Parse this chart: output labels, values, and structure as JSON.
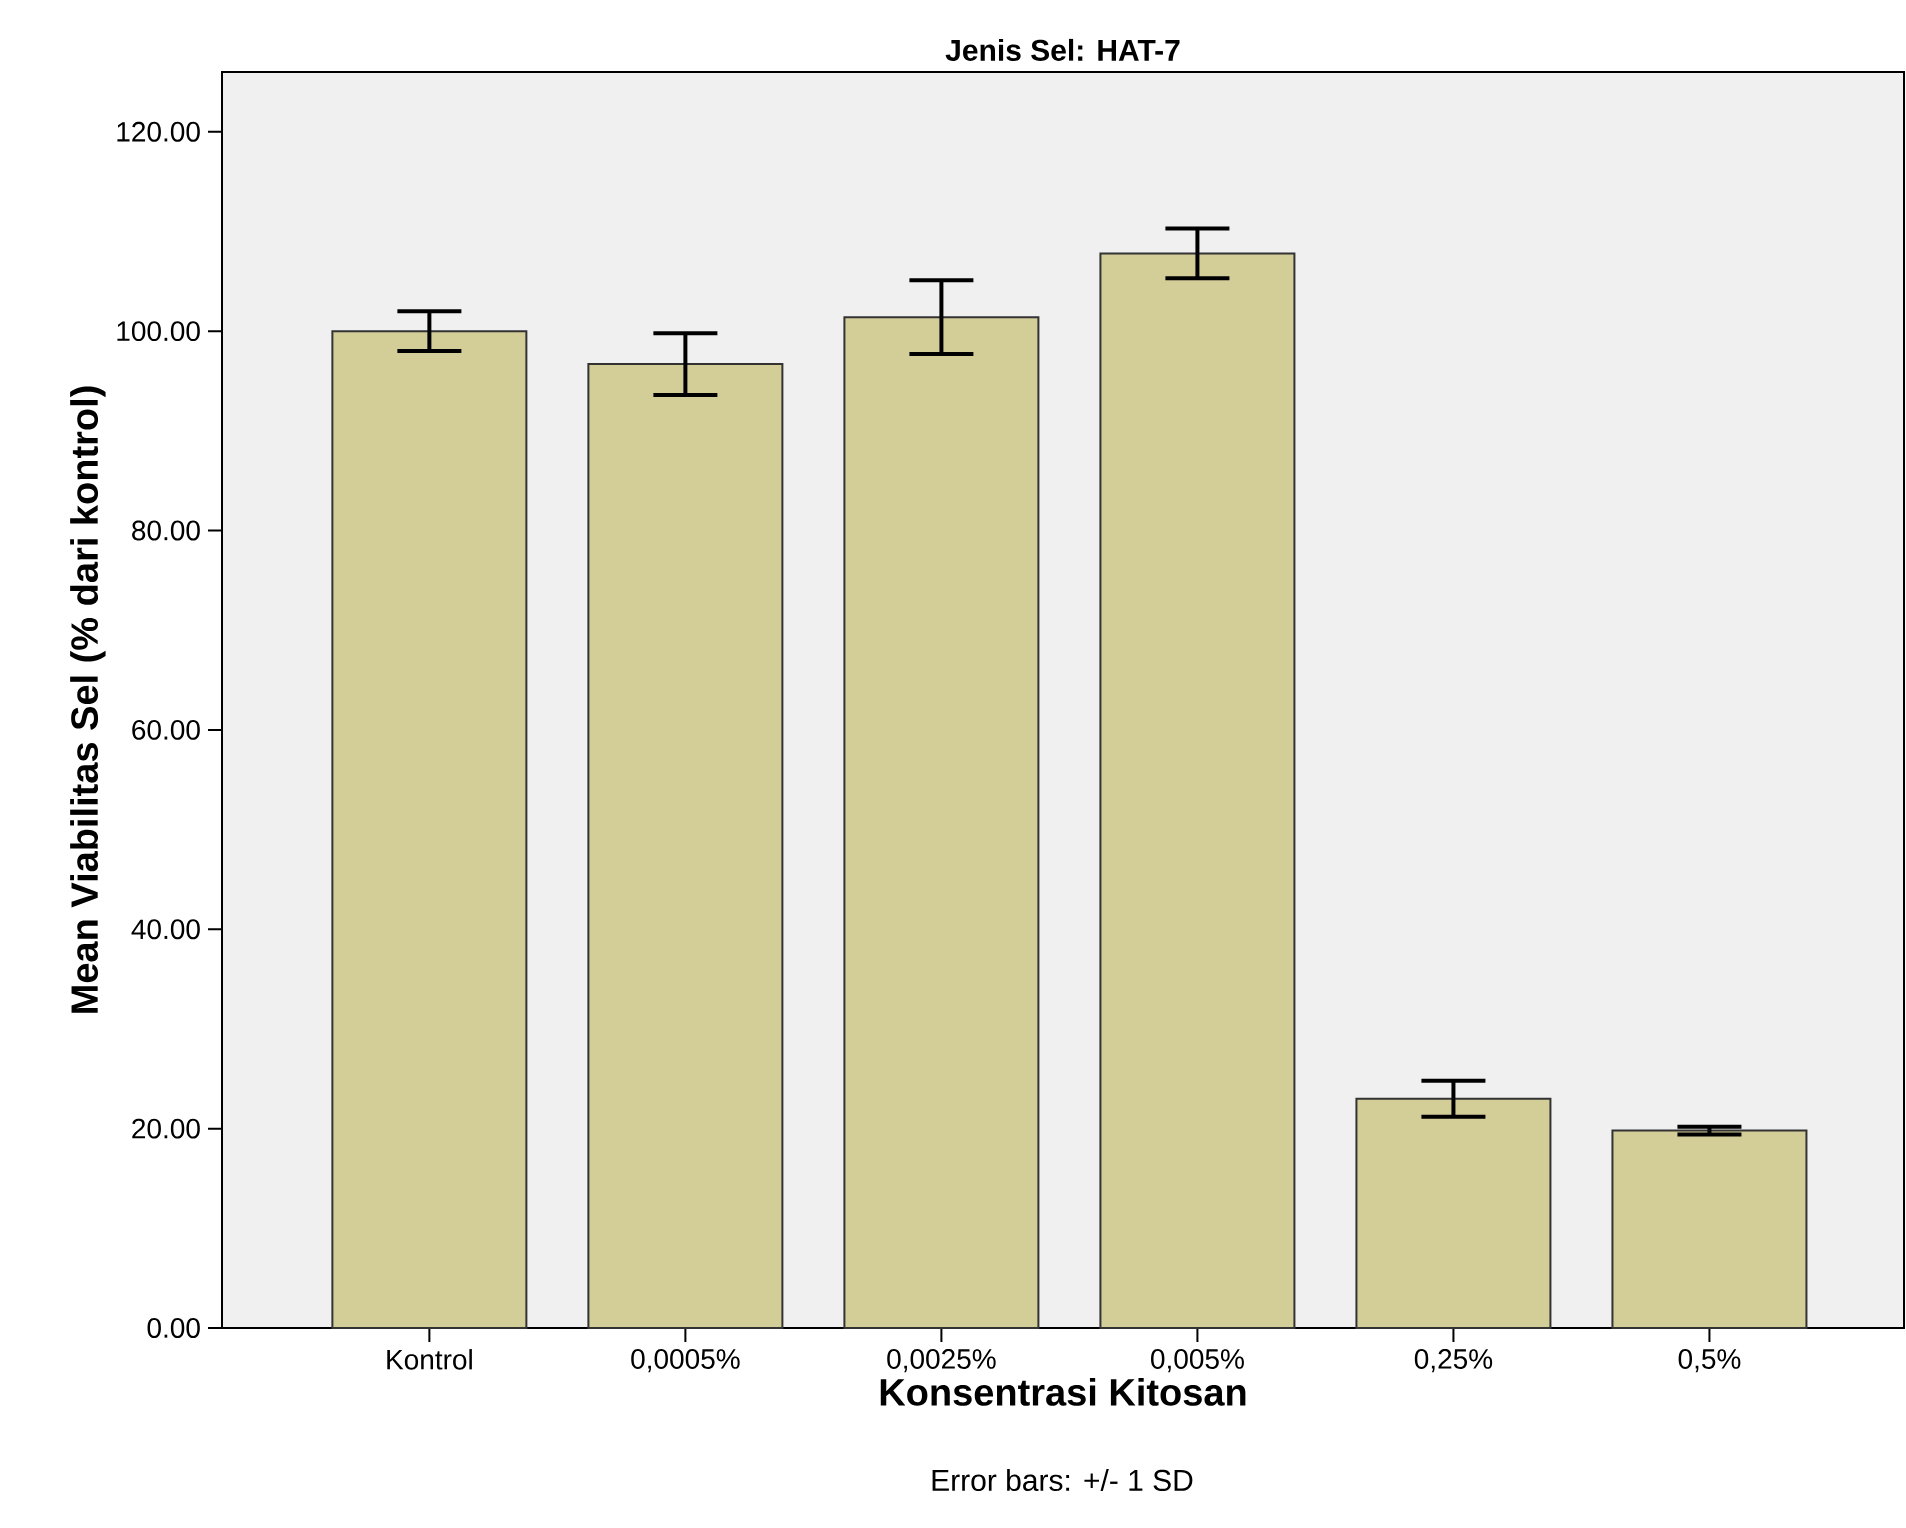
{
  "chart_data": {
    "type": "bar",
    "title": "Jenis Sel: HAT-7",
    "xlabel": "Konsentrasi Kitosan",
    "ylabel": "Mean Viabilitas Sel (% dari kontrol)",
    "categories": [
      "Kontrol",
      "0,0005%",
      "0,0025%",
      "0,005%",
      "0,25%",
      "0,5%"
    ],
    "values": [
      100.0,
      96.7,
      101.4,
      107.8,
      23.0,
      19.8
    ],
    "errors": [
      2.0,
      3.1,
      3.7,
      2.5,
      1.8,
      0.4
    ],
    "color": "#d3cd98",
    "ylim": [
      0,
      126
    ],
    "yticks": [
      {
        "value": 0,
        "label": "0.00"
      },
      {
        "value": 20,
        "label": "20.00"
      },
      {
        "value": 40,
        "label": "40.00"
      },
      {
        "value": 60,
        "label": "60.00"
      },
      {
        "value": 80,
        "label": "80.00"
      },
      {
        "value": 100,
        "label": "100.00"
      },
      {
        "value": 120,
        "label": "120.00"
      }
    ],
    "grid": false,
    "annotations": [
      "Error bars: +/- 1 SD"
    ]
  }
}
